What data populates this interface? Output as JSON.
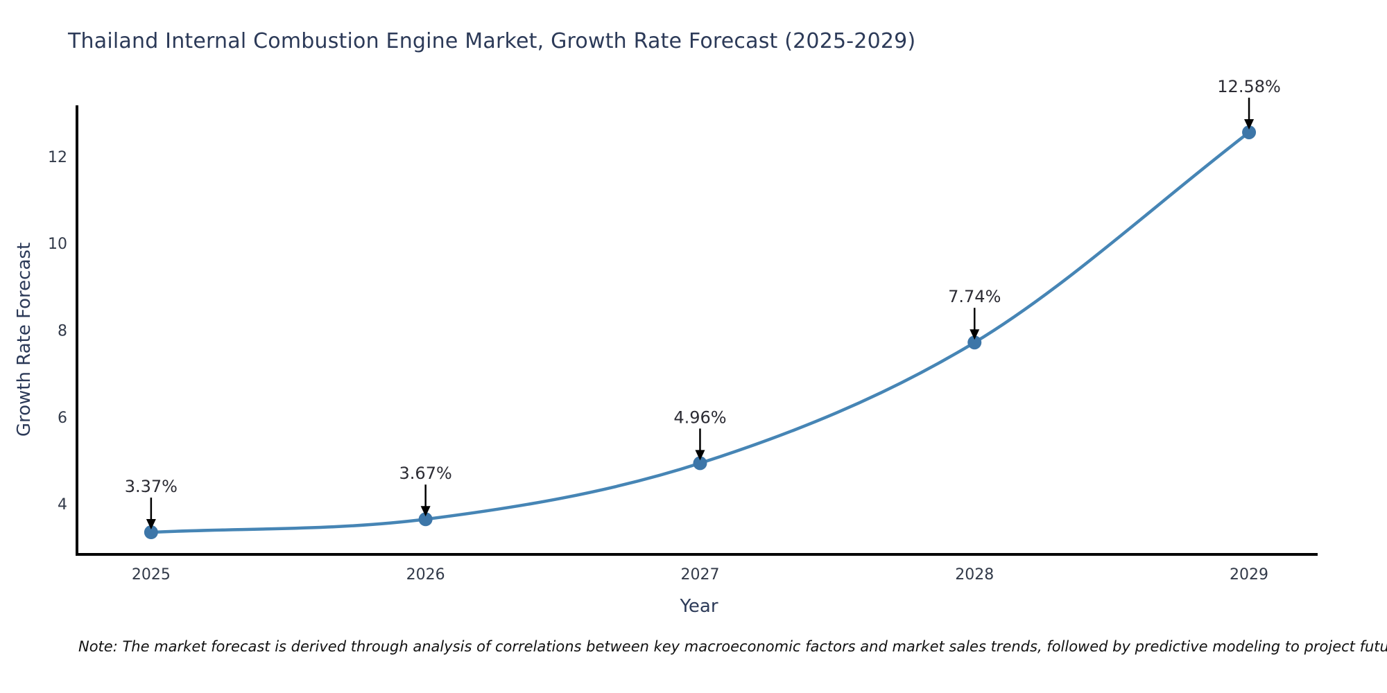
{
  "title": "Thailand Internal Combustion Engine Market, Growth Rate Forecast (2025-2029)",
  "footnote": "Note: The market forecast is derived through analysis of correlations between key macroeconomic factors and market sales trends, followed by predictive modeling to project future sales",
  "colors": {
    "line": "#4685b5",
    "marker": "#3d76a8",
    "axis": "#000000",
    "title_text": "#2c3a58",
    "tick_text": "#323a49",
    "annotation_text": "#2b2b33",
    "annotation_arrow": "#000000",
    "note_text": "#111111"
  },
  "chart_data": {
    "type": "line",
    "title": "Thailand Internal Combustion Engine Market, Growth Rate Forecast (2025-2029)",
    "xlabel": "Year",
    "ylabel": "Growth Rate Forecast",
    "x": [
      2025,
      2026,
      2027,
      2028,
      2029
    ],
    "values": [
      3.37,
      3.67,
      4.96,
      7.74,
      12.58
    ],
    "point_labels": [
      "3.37%",
      "3.67%",
      "4.96%",
      "7.74%",
      "12.58%"
    ],
    "xticks": [
      "2025",
      "2026",
      "2027",
      "2028",
      "2029"
    ],
    "yticks": [
      4,
      6,
      8,
      10,
      12
    ],
    "xlim": [
      2024.73,
      2029.25
    ],
    "ylim": [
      2.86,
      13.17
    ],
    "grid": false,
    "legend": null,
    "smooth": true,
    "marker": "circle"
  }
}
